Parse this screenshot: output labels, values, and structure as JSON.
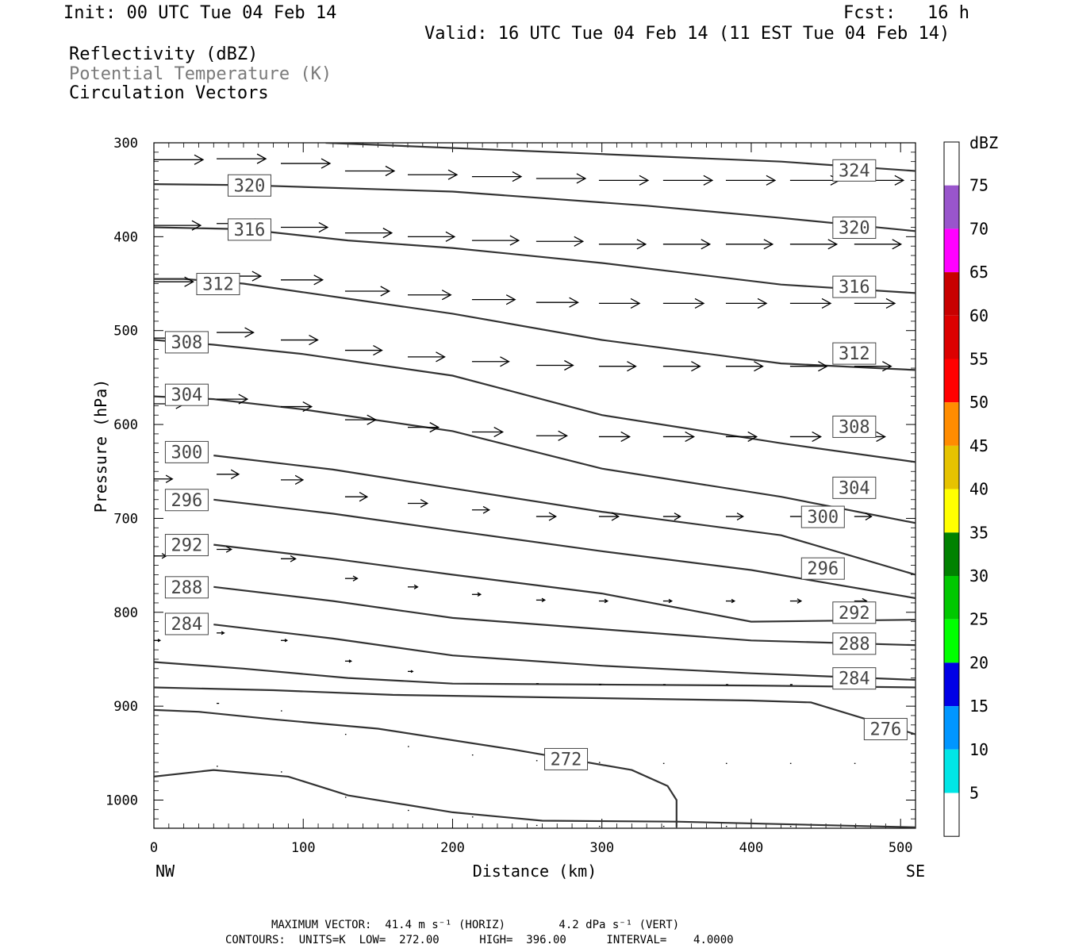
{
  "header": {
    "init": "Init: 00 UTC Tue 04 Feb 14",
    "fcst": "Fcst:   16 h",
    "valid": "Valid: 16 UTC Tue 04 Feb 14 (11 EST Tue 04 Feb 14)",
    "field1": "Reflectivity (dBZ)",
    "field2": "Potential Temperature (K)",
    "field3": "Circulation Vectors"
  },
  "footer": {
    "line1": "MAXIMUM VECTOR:  41.4 m s⁻¹ (HORIZ)        4.2 dPa s⁻¹ (VERT)",
    "line2": "CONTOURS:  UNITS=K  LOW=  272.00      HIGH=  396.00      INTERVAL=    4.0000"
  },
  "colors": {
    "contour": "#333333",
    "vector": "#000000"
  },
  "chart_data": {
    "type": "contour",
    "xlabel": "Distance (km)",
    "ylabel": "Pressure (hPa)",
    "xlim": [
      0,
      510
    ],
    "ylim_hpa": [
      300,
      1030
    ],
    "y_reversed": true,
    "x_ticks": [
      0,
      100,
      200,
      300,
      400,
      500
    ],
    "x_tick_labels": [
      "0",
      "100",
      "200",
      "300",
      "400",
      "500"
    ],
    "y_ticks": [
      300,
      400,
      500,
      600,
      700,
      800,
      900,
      1000
    ],
    "y_tick_labels": [
      "300",
      "400",
      "500",
      "600",
      "700",
      "800",
      "900",
      "1000"
    ],
    "end_labels": {
      "left": "NW",
      "right": "SE"
    },
    "colorbar": {
      "title": "dBZ",
      "bins": [
        {
          "lo": 0,
          "hi": 5,
          "color": "#ffffff"
        },
        {
          "lo": 5,
          "hi": 10,
          "color": "#00e6e6"
        },
        {
          "lo": 10,
          "hi": 15,
          "color": "#0096ff"
        },
        {
          "lo": 15,
          "hi": 20,
          "color": "#0000e6"
        },
        {
          "lo": 20,
          "hi": 25,
          "color": "#00ff00"
        },
        {
          "lo": 25,
          "hi": 30,
          "color": "#00c800"
        },
        {
          "lo": 30,
          "hi": 35,
          "color": "#008200"
        },
        {
          "lo": 35,
          "hi": 40,
          "color": "#ffff00"
        },
        {
          "lo": 40,
          "hi": 45,
          "color": "#e6c300"
        },
        {
          "lo": 45,
          "hi": 50,
          "color": "#ff8c00"
        },
        {
          "lo": 50,
          "hi": 55,
          "color": "#ff0000"
        },
        {
          "lo": 55,
          "hi": 60,
          "color": "#dc0000"
        },
        {
          "lo": 60,
          "hi": 65,
          "color": "#c80000"
        },
        {
          "lo": 65,
          "hi": 70,
          "color": "#ff00ff"
        },
        {
          "lo": 70,
          "hi": 75,
          "color": "#9955cc"
        },
        {
          "lo": 75,
          "hi": 80,
          "color": "#ffffff"
        }
      ],
      "labels": [
        "5",
        "10",
        "15",
        "20",
        "25",
        "30",
        "35",
        "40",
        "45",
        "50",
        "55",
        "60",
        "65",
        "70",
        "75"
      ]
    },
    "contours": [
      {
        "label": "324",
        "points": [
          [
            115,
            300
          ],
          [
            300,
            312
          ],
          [
            420,
            320
          ],
          [
            510,
            330
          ]
        ],
        "label_at": [
          [
            469,
            329
          ]
        ]
      },
      {
        "label": "320",
        "points": [
          [
            0,
            344
          ],
          [
            60,
            345
          ],
          [
            200,
            352
          ],
          [
            330,
            367
          ],
          [
            420,
            380
          ],
          [
            510,
            394
          ]
        ],
        "label_at": [
          [
            64,
            345
          ],
          [
            469,
            390
          ]
        ]
      },
      {
        "label": "316",
        "points": [
          [
            0,
            390
          ],
          [
            60,
            392
          ],
          [
            130,
            404
          ],
          [
            200,
            412
          ],
          [
            300,
            428
          ],
          [
            420,
            451
          ],
          [
            510,
            460
          ]
        ],
        "label_at": [
          [
            64,
            392
          ],
          [
            469,
            453
          ]
        ]
      },
      {
        "label": "312",
        "points": [
          [
            0,
            445
          ],
          [
            20,
            445
          ],
          [
            60,
            450
          ],
          [
            130,
            466
          ],
          [
            200,
            482
          ],
          [
            300,
            510
          ],
          [
            420,
            535
          ],
          [
            510,
            542
          ]
        ],
        "label_at": [
          [
            43,
            450
          ],
          [
            469,
            524
          ]
        ]
      },
      {
        "label": "308",
        "points": [
          [
            0,
            510
          ],
          [
            40,
            515
          ],
          [
            100,
            525
          ],
          [
            200,
            548
          ],
          [
            300,
            590
          ],
          [
            420,
            620
          ],
          [
            510,
            640
          ]
        ],
        "label_at": [
          [
            22,
            512
          ],
          [
            469,
            602
          ]
        ]
      },
      {
        "label": "304",
        "points": [
          [
            0,
            570
          ],
          [
            40,
            573
          ],
          [
            100,
            584
          ],
          [
            200,
            607
          ],
          [
            300,
            647
          ],
          [
            420,
            677
          ],
          [
            510,
            705
          ]
        ],
        "label_at": [
          [
            22,
            568
          ],
          [
            469,
            667
          ]
        ]
      },
      {
        "label": "300",
        "points": [
          [
            40,
            633
          ],
          [
            120,
            648
          ],
          [
            200,
            668
          ],
          [
            300,
            693
          ],
          [
            420,
            718
          ],
          [
            510,
            760
          ]
        ],
        "label_at": [
          [
            22,
            629
          ],
          [
            448,
            698
          ]
        ]
      },
      {
        "label": "296",
        "points": [
          [
            40,
            680
          ],
          [
            120,
            695
          ],
          [
            200,
            713
          ],
          [
            300,
            735
          ],
          [
            400,
            755
          ],
          [
            510,
            785
          ]
        ],
        "label_at": [
          [
            22,
            680
          ],
          [
            448,
            753
          ]
        ]
      },
      {
        "label": "292",
        "points": [
          [
            40,
            728
          ],
          [
            120,
            743
          ],
          [
            200,
            760
          ],
          [
            300,
            780
          ],
          [
            400,
            810
          ],
          [
            510,
            808
          ]
        ],
        "label_at": [
          [
            22,
            728
          ],
          [
            469,
            800
          ]
        ]
      },
      {
        "label": "288",
        "points": [
          [
            40,
            773
          ],
          [
            120,
            788
          ],
          [
            200,
            806
          ],
          [
            300,
            818
          ],
          [
            400,
            830
          ],
          [
            510,
            835
          ]
        ],
        "label_at": [
          [
            22,
            773
          ],
          [
            469,
            833
          ]
        ]
      },
      {
        "label": "284",
        "points": [
          [
            40,
            813
          ],
          [
            120,
            828
          ],
          [
            200,
            846
          ],
          [
            300,
            857
          ],
          [
            400,
            865
          ],
          [
            510,
            872
          ]
        ],
        "label_at": [
          [
            22,
            812
          ],
          [
            469,
            870
          ]
        ]
      },
      {
        "label": "",
        "points": [
          [
            0,
            853
          ],
          [
            60,
            860
          ],
          [
            130,
            870
          ],
          [
            200,
            876
          ],
          [
            300,
            877
          ],
          [
            400,
            878
          ],
          [
            510,
            880
          ]
        ],
        "label_at": []
      },
      {
        "label": "",
        "points": [
          [
            0,
            880
          ],
          [
            80,
            883
          ],
          [
            160,
            888
          ],
          [
            280,
            891
          ],
          [
            400,
            894
          ],
          [
            440,
            896
          ],
          [
            500,
            925
          ],
          [
            510,
            930
          ]
        ],
        "label_at": []
      },
      {
        "label": "276",
        "points": [],
        "label_at": [
          [
            490,
            924
          ]
        ]
      },
      {
        "label": "272",
        "points": [
          [
            0,
            904
          ],
          [
            30,
            906
          ],
          [
            80,
            914
          ],
          [
            150,
            924
          ],
          [
            240,
            946
          ],
          [
            320,
            968
          ],
          [
            344,
            985
          ],
          [
            350,
            1000
          ],
          [
            350,
            1029
          ]
        ],
        "label_at": [
          [
            276,
            956
          ]
        ]
      },
      {
        "label": "",
        "points": [
          [
            0,
            975
          ],
          [
            40,
            968
          ],
          [
            90,
            975
          ],
          [
            130,
            995
          ],
          [
            200,
            1013
          ],
          [
            260,
            1022
          ],
          [
            350,
            1023
          ],
          [
            510,
            1029
          ]
        ],
        "label_at": []
      }
    ],
    "vectors": [
      {
        "x": 0,
        "p": 318,
        "u": 40
      },
      {
        "x": 42,
        "p": 317,
        "u": 40
      },
      {
        "x": 85,
        "p": 322,
        "u": 40
      },
      {
        "x": 128,
        "p": 330,
        "u": 40
      },
      {
        "x": 170,
        "p": 334,
        "u": 40
      },
      {
        "x": 213,
        "p": 336,
        "u": 40
      },
      {
        "x": 256,
        "p": 338,
        "u": 40
      },
      {
        "x": 298,
        "p": 340,
        "u": 40
      },
      {
        "x": 341,
        "p": 340,
        "u": 40
      },
      {
        "x": 383,
        "p": 340,
        "u": 40
      },
      {
        "x": 426,
        "p": 340,
        "u": 40
      },
      {
        "x": 469,
        "p": 340,
        "u": 40
      },
      {
        "x": 0,
        "p": 388,
        "u": 38
      },
      {
        "x": 42,
        "p": 386,
        "u": 38
      },
      {
        "x": 85,
        "p": 390,
        "u": 38
      },
      {
        "x": 128,
        "p": 396,
        "u": 38
      },
      {
        "x": 170,
        "p": 400,
        "u": 38
      },
      {
        "x": 213,
        "p": 404,
        "u": 38
      },
      {
        "x": 256,
        "p": 405,
        "u": 38
      },
      {
        "x": 298,
        "p": 408,
        "u": 38
      },
      {
        "x": 341,
        "p": 408,
        "u": 38
      },
      {
        "x": 383,
        "p": 408,
        "u": 38
      },
      {
        "x": 426,
        "p": 408,
        "u": 38
      },
      {
        "x": 469,
        "p": 408,
        "u": 38
      },
      {
        "x": 0,
        "p": 448,
        "u": 32
      },
      {
        "x": 42,
        "p": 442,
        "u": 36
      },
      {
        "x": 85,
        "p": 446,
        "u": 34
      },
      {
        "x": 128,
        "p": 458,
        "u": 36
      },
      {
        "x": 170,
        "p": 462,
        "u": 35
      },
      {
        "x": 213,
        "p": 467,
        "u": 35
      },
      {
        "x": 256,
        "p": 470,
        "u": 34
      },
      {
        "x": 298,
        "p": 471,
        "u": 33
      },
      {
        "x": 341,
        "p": 471,
        "u": 33
      },
      {
        "x": 383,
        "p": 471,
        "u": 33
      },
      {
        "x": 426,
        "p": 471,
        "u": 33
      },
      {
        "x": 469,
        "p": 471,
        "u": 33
      },
      {
        "x": 0,
        "p": 508,
        "u": 30
      },
      {
        "x": 42,
        "p": 502,
        "u": 30
      },
      {
        "x": 85,
        "p": 510,
        "u": 30
      },
      {
        "x": 128,
        "p": 521,
        "u": 30
      },
      {
        "x": 170,
        "p": 528,
        "u": 30
      },
      {
        "x": 213,
        "p": 533,
        "u": 30
      },
      {
        "x": 256,
        "p": 537,
        "u": 30
      },
      {
        "x": 298,
        "p": 538,
        "u": 30
      },
      {
        "x": 341,
        "p": 538,
        "u": 30
      },
      {
        "x": 383,
        "p": 538,
        "u": 30
      },
      {
        "x": 426,
        "p": 538,
        "u": 30
      },
      {
        "x": 469,
        "p": 538,
        "u": 30
      },
      {
        "x": 0,
        "p": 578,
        "u": 25
      },
      {
        "x": 42,
        "p": 573,
        "u": 25
      },
      {
        "x": 85,
        "p": 581,
        "u": 25
      },
      {
        "x": 128,
        "p": 595,
        "u": 25
      },
      {
        "x": 170,
        "p": 603,
        "u": 25
      },
      {
        "x": 213,
        "p": 608,
        "u": 25
      },
      {
        "x": 256,
        "p": 612,
        "u": 25
      },
      {
        "x": 298,
        "p": 613,
        "u": 25
      },
      {
        "x": 341,
        "p": 613,
        "u": 25
      },
      {
        "x": 383,
        "p": 613,
        "u": 25
      },
      {
        "x": 426,
        "p": 613,
        "u": 25
      },
      {
        "x": 469,
        "p": 613,
        "u": 25
      },
      {
        "x": 0,
        "p": 658,
        "u": 15
      },
      {
        "x": 42,
        "p": 653,
        "u": 18
      },
      {
        "x": 85,
        "p": 659,
        "u": 18
      },
      {
        "x": 128,
        "p": 677,
        "u": 18
      },
      {
        "x": 170,
        "p": 684,
        "u": 16
      },
      {
        "x": 213,
        "p": 691,
        "u": 14
      },
      {
        "x": 256,
        "p": 698,
        "u": 16
      },
      {
        "x": 298,
        "p": 698,
        "u": 16
      },
      {
        "x": 341,
        "p": 698,
        "u": 14
      },
      {
        "x": 383,
        "p": 698,
        "u": 14
      },
      {
        "x": 426,
        "p": 698,
        "u": 14
      },
      {
        "x": 469,
        "p": 698,
        "u": 14
      },
      {
        "x": 0,
        "p": 740,
        "u": 10
      },
      {
        "x": 42,
        "p": 733,
        "u": 12
      },
      {
        "x": 85,
        "p": 743,
        "u": 12
      },
      {
        "x": 128,
        "p": 764,
        "u": 10
      },
      {
        "x": 170,
        "p": 773,
        "u": 8
      },
      {
        "x": 213,
        "p": 781,
        "u": 7
      },
      {
        "x": 256,
        "p": 787,
        "u": 7
      },
      {
        "x": 298,
        "p": 788,
        "u": 7
      },
      {
        "x": 341,
        "p": 788,
        "u": 7
      },
      {
        "x": 383,
        "p": 788,
        "u": 7
      },
      {
        "x": 426,
        "p": 788,
        "u": 9
      },
      {
        "x": 469,
        "p": 788,
        "u": 10
      },
      {
        "x": 0,
        "p": 830,
        "u": 5
      },
      {
        "x": 42,
        "p": 822,
        "u": 6
      },
      {
        "x": 85,
        "p": 830,
        "u": 5
      },
      {
        "x": 128,
        "p": 852,
        "u": 5
      },
      {
        "x": 170,
        "p": 863,
        "u": 4
      },
      {
        "x": 256,
        "p": 876,
        "u": 2
      },
      {
        "x": 298,
        "p": 877,
        "u": 2
      },
      {
        "x": 341,
        "p": 877,
        "u": 2
      },
      {
        "x": 383,
        "p": 877,
        "u": 2
      },
      {
        "x": 426,
        "p": 877,
        "u": 2
      },
      {
        "x": 469,
        "p": 877,
        "u": 4
      },
      {
        "x": 42,
        "p": 897,
        "u": 2
      },
      {
        "x": 85,
        "p": 905,
        "u": 1
      },
      {
        "x": 128,
        "p": 930,
        "u": 1
      },
      {
        "x": 170,
        "p": 943,
        "u": 1
      },
      {
        "x": 213,
        "p": 952,
        "u": 1
      },
      {
        "x": 256,
        "p": 958,
        "u": 1
      },
      {
        "x": 298,
        "p": 960,
        "u": 1
      },
      {
        "x": 341,
        "p": 961,
        "u": 1
      },
      {
        "x": 383,
        "p": 961,
        "u": 1
      },
      {
        "x": 426,
        "p": 961,
        "u": 1
      },
      {
        "x": 469,
        "p": 961,
        "u": 1
      },
      {
        "x": 42,
        "p": 964,
        "u": 1
      },
      {
        "x": 85,
        "p": 970,
        "u": 1
      },
      {
        "x": 128,
        "p": 997,
        "u": 1
      },
      {
        "x": 170,
        "p": 1011,
        "u": 1
      },
      {
        "x": 213,
        "p": 1018,
        "u": 1
      },
      {
        "x": 256,
        "p": 1027,
        "u": 1
      },
      {
        "x": 298,
        "p": 1028,
        "u": 1
      },
      {
        "x": 341,
        "p": 1028,
        "u": 1
      },
      {
        "x": 383,
        "p": 1028,
        "u": 1
      },
      {
        "x": 426,
        "p": 1028,
        "u": 1
      },
      {
        "x": 469,
        "p": 1028,
        "u": 1
      }
    ]
  }
}
